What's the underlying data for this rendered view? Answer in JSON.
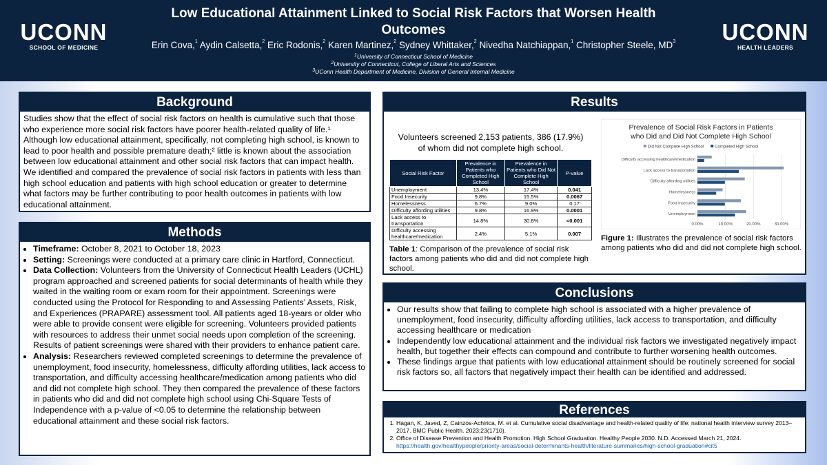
{
  "header": {
    "title": "Low Educational Attainment Linked to Social Risk Factors that Worsen Health Outcomes",
    "authors": [
      {
        "name": "Erin Cova,",
        "sup": "1"
      },
      {
        "name": "Aydin Calsetta,",
        "sup": "2"
      },
      {
        "name": "Eric Rodonis,",
        "sup": "2"
      },
      {
        "name": "Karen Martinez,",
        "sup": "2"
      },
      {
        "name": "Sydney Whittaker,",
        "sup": "2"
      },
      {
        "name": "Nivedha Natchiappan,",
        "sup": "1"
      },
      {
        "name": "Christopher Steele, MD",
        "sup": "3"
      }
    ],
    "affiliations": [
      {
        "sup": "1",
        "text": "University of Connecticut School of Medicine"
      },
      {
        "sup": "2",
        "text": "University of Connecticut, College of Liberal Arts and Sciences"
      },
      {
        "sup": "3",
        "text": "UConn Health Department of Medicine, Division of General Internal Medicine"
      }
    ],
    "logo_left": {
      "name": "UCONN",
      "sub": "SCHOOL OF MEDICINE"
    },
    "logo_right": {
      "name": "UCONN",
      "sub": "HEALTH LEADERS"
    }
  },
  "background": {
    "heading": "Background",
    "text": "Studies show that the effect of social risk factors on health is cumulative such that those who experience more social risk factors have poorer health-related quality of life.¹ Although low educational attainment, specifically, not completing high school, is known to lead to poor health and possible premature death;² little is known about the association between low educational attainment  and other social risk factors that can impact health. We identified and compared the prevalence of social risk factors in patients with less than high school education and patients with high school education or greater to determine what factors may be further contributing to poor health outcomes in patients with low educational attainment."
  },
  "methods": {
    "heading": "Methods",
    "items": [
      {
        "label": "Timeframe:",
        "text": " October 8, 2021 to October 18, 2023"
      },
      {
        "label": "Setting:",
        "text": " Screenings were conducted at a primary care clinic in Hartford, Connecticut."
      },
      {
        "label": "Data Collection:",
        "text": " Volunteers from the University of Connecticut Health Leaders (UCHL) program approached and screened patients for social determinants of health while they waited in the waiting room or exam room for their appointment. Screenings were conducted using the Protocol for Responding to and Assessing Patients’ Assets, Risk, and Experiences (PRAPARE) assessment tool. All patients aged 18-years or older who were able to provide consent were eligible for screening. Volunteers provided patients with resources to address their unmet social needs upon completion of the screening. Results of patient screenings were shared with their providers to enhance patient care."
      },
      {
        "label": "Analysis:",
        "text": " Researchers reviewed completed screenings to determine the prevalence of unemployment, food insecurity, homelessness, difficulty affording utilities, lack access to transportation, and difficulty accessing healthcare/medication among patients who did and did not complete high school. They then compared the prevalence of these factors in patients who did and did not complete high school using Chi-Square Tests of Independence with a p-value of <0.05 to determine the relationship between educational attainment and these social risk factors."
      }
    ]
  },
  "results": {
    "heading": "Results",
    "summary": "Volunteers screened 2,153 patients, 386 (17.9%) of whom did not complete high school.",
    "table": {
      "headers": [
        "Social Risk Factor",
        "Prevalence in Patients who Completed High School",
        "Prevalence in Patients who Did Not Complete High School",
        "P-value"
      ],
      "rows": [
        [
          "Unemployment",
          "13.4%",
          "17.4%",
          "0.041"
        ],
        [
          "Food Insecurity",
          "9.8%",
          "15.5%",
          "0.0067"
        ],
        [
          "Homelessness",
          "6.7%",
          "9.0%",
          "0.17"
        ],
        [
          "Difficulty affording utilities",
          "9.8%",
          "16.9%",
          "0.0001"
        ],
        [
          "Lack access to transportation",
          "14.8%",
          "30.8%",
          "<0.001"
        ],
        [
          "Difficulty accessing healthcare/medication",
          "2.4%",
          "5.1%",
          "0.007"
        ]
      ],
      "bold_pvalues": [
        true,
        true,
        false,
        true,
        true,
        true
      ]
    },
    "table_caption_label": "Table 1",
    "table_caption": ": Comparison of the prevalence of social risk factors among patients who did and did not complete high school.",
    "figure_caption_label": "Figure 1:",
    "figure_caption": " Illustrates the prevalence of social risk factors among patients who did and did not complete high school."
  },
  "chart_data": {
    "type": "bar",
    "orientation": "horizontal",
    "title": "Prevalence of Social Risk Factors in Patients who Did and Did Not Complete High School",
    "categories": [
      "Difficulty accessing healthcare/medication",
      "Lack access to transportation",
      "Difficulty affording utilities",
      "Homelessness",
      "Food Insecurity",
      "Unemployment"
    ],
    "series": [
      {
        "name": "Did Not Complete High School",
        "color": "#8496b0",
        "values": [
          5.1,
          30.8,
          16.9,
          9.0,
          15.5,
          17.4
        ]
      },
      {
        "name": "Completed High School",
        "color": "#1f4e79",
        "values": [
          2.4,
          14.8,
          9.8,
          6.7,
          9.8,
          13.4
        ]
      }
    ],
    "xticks": [
      "0.00%",
      "10.00%",
      "20.00%",
      "30.00%"
    ],
    "xlim": [
      0,
      32
    ],
    "grid": true,
    "legend": "top"
  },
  "conclusions": {
    "heading": "Conclusions",
    "items": [
      "Our results show that failing to complete high school is associated with a higher prevalence of unemployment, food insecurity, difficulty affording utilities, lack access to transportation, and difficulty accessing healthcare or medication",
      "Independently low educational attainment and the individual risk factors we investigated negatively impact health, but together their effects can compound and contribute to further worsening health outcomes.",
      "These findings argue that patients with low educational attainment should be routinely screened for social risk factors so, all factors that negatively impact their health can be identified and addressed."
    ]
  },
  "references": {
    "heading": "References",
    "items": [
      {
        "text": "Hagan, K, Javed, Z, Cainzos-Achirica, M. et al. Cumulative social disadvantage and health-related quality of life: national health interview survey 2013–2017. BMC Public Health. 2023;23(1710).",
        "link": ""
      },
      {
        "text": "Office of Disease Prevention and Health Promotion. High School Graduation. Healthy People 2030. N.D. Accessed March 21, 2024.",
        "link": "https://health.gov/healthypeople/priority-areas/social-determinants-health/literature-summaries/high-school-graduation#cit5"
      }
    ]
  },
  "colors": {
    "navy": "#0c2340"
  }
}
